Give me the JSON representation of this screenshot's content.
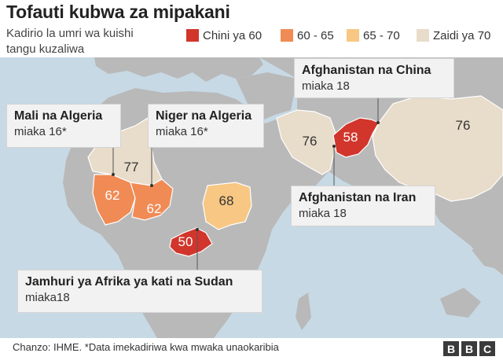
{
  "title": "Tofauti kubwa za mipakani",
  "subtitle": "Kadirio la umri wa kuishi\ntangu kuzaliwa",
  "legend": [
    {
      "label": "Chini ya 60",
      "color": "#d1352b"
    },
    {
      "label": "60 - 65",
      "color": "#f08b55"
    },
    {
      "label": "65 - 70",
      "color": "#f7c783"
    },
    {
      "label": "Zaidi ya 70",
      "color": "#e8dcca"
    }
  ],
  "map_colors": {
    "ocean": "#c7d9e4",
    "land": "#b9b9b9",
    "border": "#ffffff"
  },
  "values": {
    "algeria": "77",
    "mali": "62",
    "niger": "62",
    "sudan": "68",
    "car": "50",
    "iran": "76",
    "afghanistan": "58",
    "china": "76"
  },
  "callouts": {
    "mali_algeria": {
      "name": "Mali na Algeria",
      "value": "miaka 16*"
    },
    "niger_algeria": {
      "name": "Niger na Algeria",
      "value": "miaka 16*"
    },
    "afg_china": {
      "name": "Afghanistan na China",
      "value": "miaka 18"
    },
    "afg_iran": {
      "name": "Afghanistan na Iran",
      "value": "miaka 18"
    },
    "car_sudan": {
      "name": "Jamhuri ya Afrika ya kati na Sudan",
      "value": "miaka18"
    }
  },
  "footer": "Chanzo: IHME. *Data imekadiriwa kwa mwaka unaokaribia",
  "logo": [
    "B",
    "B",
    "C"
  ]
}
